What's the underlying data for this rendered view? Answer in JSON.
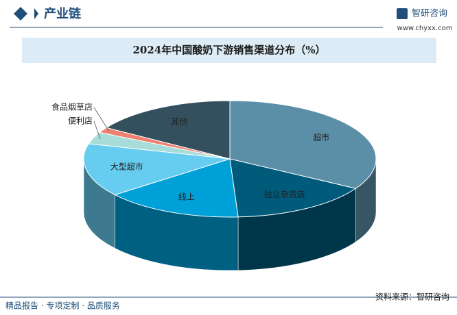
{
  "header": {
    "section": "产业链",
    "brand": "智研咨询",
    "website": "www.chyxx.com"
  },
  "chart_data": {
    "type": "pie3d",
    "title": "2024年中国酸奶下游销售渠道分布（%）",
    "categories": [
      "超市",
      "独立杂货店",
      "线上",
      "大型超市",
      "便利店",
      "食品烟草店",
      "其他"
    ],
    "values": [
      33.5,
      15.6,
      15.3,
      14.8,
      3.3,
      1.5,
      16
    ],
    "colors": [
      "#5b8fa8",
      "#005a7a",
      "#00a0d8",
      "#66ccf0",
      "#a8dcd8",
      "#f08070",
      "#34505e"
    ]
  },
  "footer": {
    "slogan": "精品报告 · 专项定制 · 品质服务",
    "source": "资料来源：智研咨询"
  }
}
